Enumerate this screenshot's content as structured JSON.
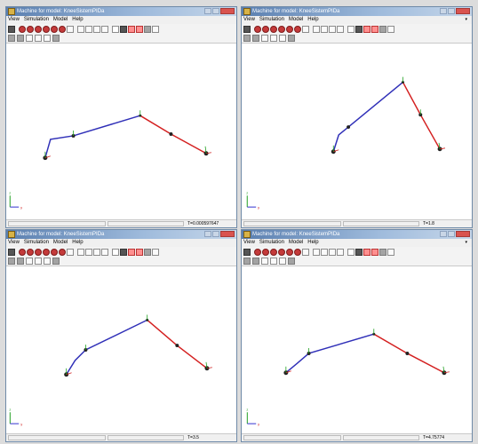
{
  "menu": [
    "View",
    "Simulation",
    "Model",
    "Help"
  ],
  "windows": [
    {
      "title": "Machine for model: KneeSistemPIDa",
      "time": "T=0.000597647",
      "pose": "pose1"
    },
    {
      "title": "Machine for model: KneeSistemPIDa",
      "time": "T=1.8",
      "pose": "pose2"
    },
    {
      "title": "Machine for model: KneeSistemPIDa",
      "time": "T=3.5",
      "pose": "pose3"
    },
    {
      "title": "Machine for model: KneeSistemPIDa",
      "time": "T=4.75774",
      "pose": "pose4"
    }
  ],
  "icons": {
    "toolbar1": [
      "save-icon",
      "cube-front-icon",
      "cube-top-icon",
      "cube-side-icon",
      "cube-iso-icon",
      "cube-back-icon",
      "sphere-icon",
      "grid-icon",
      "select-icon",
      "rotate-icon",
      "pan-icon",
      "zoom-icon",
      "play-icon",
      "stop-icon",
      "record-icon",
      "frame-icon",
      "settings-icon",
      "clock-icon"
    ],
    "toolbar2": [
      "gray-square-icon",
      "gray-square-icon",
      "view-icon",
      "camera-icon",
      "zoom-window-icon",
      "gray-square-icon"
    ]
  },
  "colors": {
    "upper_link": "#3030b8",
    "lower_link": "#d42020",
    "axis_x": "#d02020",
    "axis_y": "#20a020",
    "axis_z": "#3030d0"
  }
}
